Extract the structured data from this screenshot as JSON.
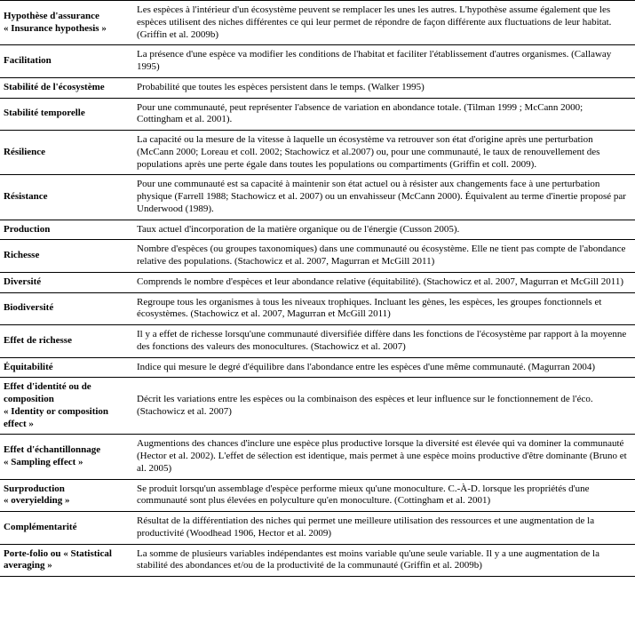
{
  "rows": [
    {
      "term": "Hypothèse d'assurance",
      "term_sub": "« Insurance hypothesis »",
      "def": "Les espèces à l'intérieur d'un écosystème peuvent se remplacer les unes les autres. L'hypothèse assume également que les espèces utilisent des niches différentes ce qui leur permet de répondre de façon différente aux fluctuations de leur habitat. (Griffin et al. 2009b)"
    },
    {
      "term": "Facilitation",
      "term_sub": "",
      "def": "La présence d'une espèce va modifier les conditions de l'habitat et faciliter l'établissement d'autres organismes. (Callaway 1995)"
    },
    {
      "term": "Stabilité de l'écosystème",
      "term_sub": "",
      "def": "Probabilité que toutes les espèces persistent dans le temps. (Walker 1995)"
    },
    {
      "term": "Stabilité temporelle",
      "term_sub": "",
      "def": "Pour une communauté, peut représenter l'absence de variation en abondance totale. (Tilman 1999 ; McCann 2000; Cottingham  et al. 2001)."
    },
    {
      "term": "Résilience",
      "term_sub": "",
      "def": "La capacité ou la mesure de la vitesse à laquelle un écosystème va retrouver son état d'origine après une perturbation (McCann 2000; Loreau et coll. 2002; Stachowicz et al.2007) ou, pour une communauté, le taux de renouvellement des populations après une perte égale dans toutes les populations ou compartiments (Griffin et coll. 2009)."
    },
    {
      "term": "Résistance",
      "term_sub": "",
      "def": "Pour une communauté est sa capacité à maintenir son état actuel ou à résister aux changements face à une perturbation physique (Farrell 1988; Stachowicz et al. 2007) ou un envahisseur (McCann 2000). Équivalent au terme d'inertie proposé par Underwood (1989)."
    },
    {
      "term": "Production",
      "term_sub": "",
      "def": "Taux actuel d'incorporation de la matière organique ou de l'énergie (Cusson 2005)."
    },
    {
      "term": "Richesse",
      "term_sub": "",
      "def": "Nombre d'espèces (ou groupes taxonomiques) dans une communauté ou écosystème. Elle ne tient pas compte de l'abondance relative des populations. (Stachowicz et al. 2007, Magurran et McGill 2011)"
    },
    {
      "term": "Diversité",
      "term_sub": "",
      "def": "Comprends le nombre d'espèces et leur abondance relative (équitabilité). (Stachowicz et al. 2007, Magurran et McGill 2011)"
    },
    {
      "term": "Biodiversité",
      "term_sub": "",
      "def": "Regroupe tous les organismes à tous les niveaux trophiques. Incluant les gènes, les espèces, les groupes fonctionnels et écosystèmes. (Stachowicz et al. 2007, Magurran et McGill 2011)"
    },
    {
      "term": "Effet de richesse",
      "term_sub": "",
      "def": "Il y a effet de richesse lorsqu'une communauté diversifiée diffère dans les fonctions de l'écosystème par rapport à la moyenne des fonctions des valeurs des monocultures. (Stachowicz et al. 2007)"
    },
    {
      "term": "Équitabilité",
      "term_sub": "",
      "def": "Indice qui mesure le degré d'équilibre dans l'abondance entre les espèces d'une même communauté. (Magurran 2004)"
    },
    {
      "term": "Effet d'identité ou de composition",
      "term_sub": "« Identity or composition effect »",
      "def": "Décrit les variations entre les espèces ou la combinaison des espèces et leur influence sur le fonctionnement de l'éco. (Stachowicz et al. 2007)"
    },
    {
      "term": "Effet d'échantillonnage",
      "term_sub": "« Sampling effect »",
      "def": "Augmentions des chances d'inclure une espèce plus productive lorsque la diversité est élevée  qui va dominer la communauté (Hector et al. 2002). L'effet de sélection est identique, mais permet à une espèce moins productive d'être dominante (Bruno et al. 2005)"
    },
    {
      "term": "Surproduction",
      "term_sub": "« overyielding »",
      "def": "Se produit lorsqu'un assemblage d'espèce performe mieux qu'une monoculture. C.-À-D. lorsque les propriétés d'une communauté sont plus élevées en polyculture qu'en monoculture. (Cottingham et al. 2001)"
    },
    {
      "term": "Complémentarité",
      "term_sub": "",
      "def": "Résultat de la différentiation des niches qui permet une meilleure utilisation des ressources et une augmentation de la productivité (Woodhead 1906, Hector et al. 2009)"
    },
    {
      "term": "Porte-folio ou « Statistical averaging »",
      "term_sub": "",
      "def": "La somme de plusieurs variables indépendantes est moins variable qu'une seule variable. Il y a une augmentation de la stabilité des abondances et/ou de la productivité de la communauté (Griffin et al. 2009b)"
    }
  ]
}
